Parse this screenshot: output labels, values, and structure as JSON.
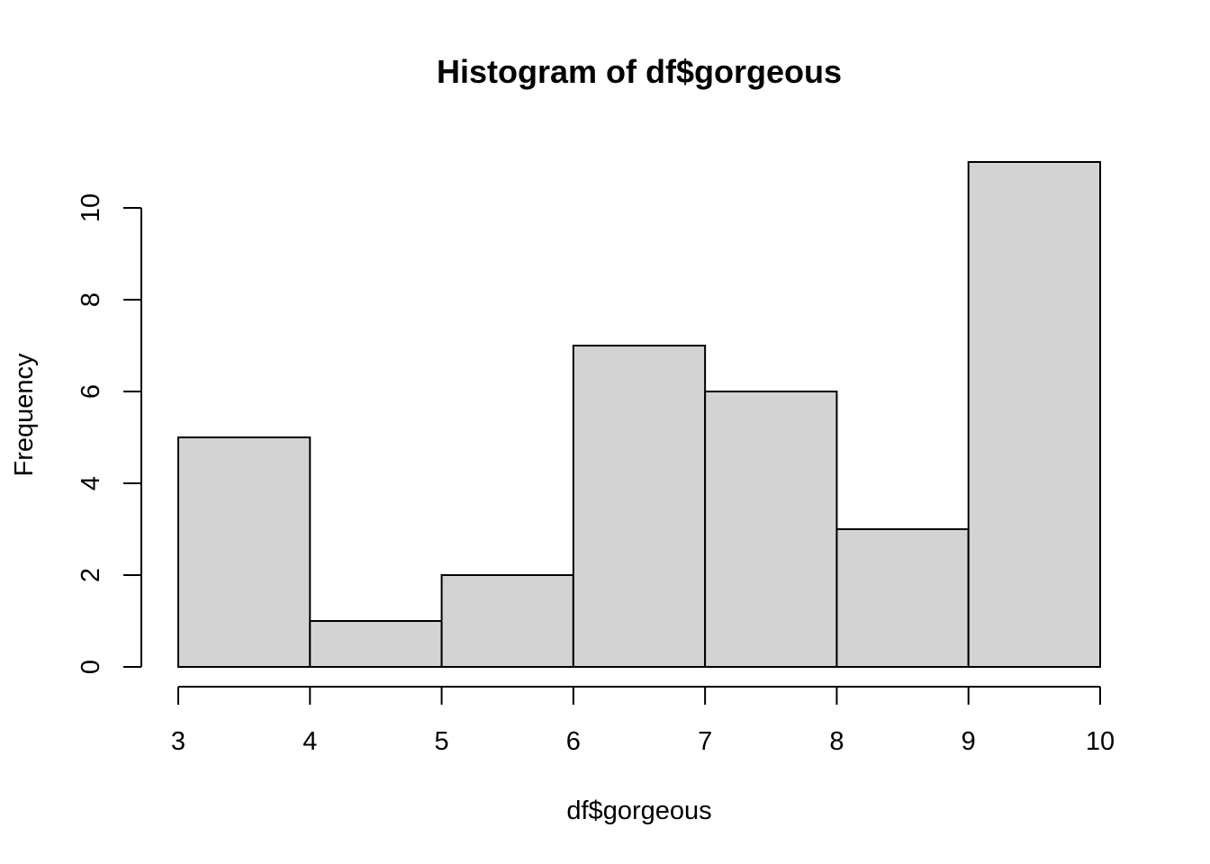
{
  "chart_data": {
    "type": "bar",
    "title": "Histogram of df$gorgeous",
    "xlabel": "df$gorgeous",
    "ylabel": "Frequency",
    "bins": [
      {
        "from": 3,
        "to": 4,
        "count": 5
      },
      {
        "from": 4,
        "to": 5,
        "count": 1
      },
      {
        "from": 5,
        "to": 6,
        "count": 2
      },
      {
        "from": 6,
        "to": 7,
        "count": 7
      },
      {
        "from": 7,
        "to": 8,
        "count": 6
      },
      {
        "from": 8,
        "to": 9,
        "count": 3
      },
      {
        "from": 9,
        "to": 10,
        "count": 11
      }
    ],
    "xticks": [
      3,
      4,
      5,
      6,
      7,
      8,
      9,
      10
    ],
    "yticks": [
      0,
      2,
      4,
      6,
      8,
      10
    ],
    "xlim": [
      3,
      10
    ],
    "ylim": [
      0,
      11
    ],
    "grid": false,
    "bar_color": "#d3d3d3",
    "edge_color": "#000000"
  }
}
